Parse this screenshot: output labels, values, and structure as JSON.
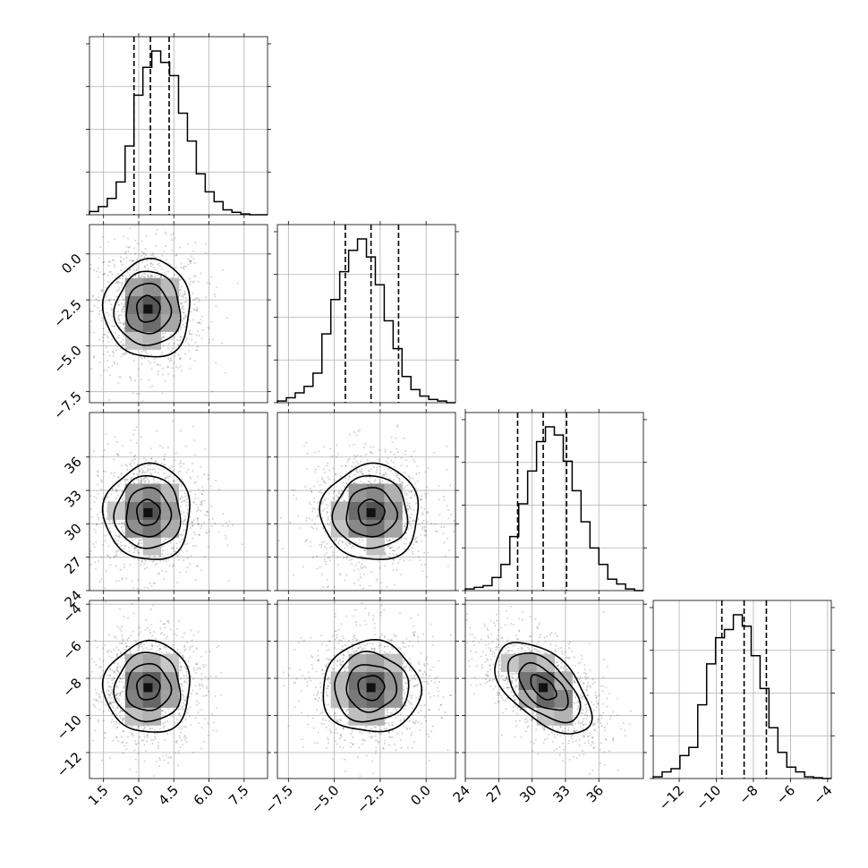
{
  "chart_data": {
    "type": "corner",
    "grid": true,
    "params": [
      {
        "name": "",
        "range": [
          0.9,
          8.5
        ],
        "ticks": [
          "1.5",
          "3.0",
          "4.5",
          "6.0",
          "7.5"
        ],
        "tick_values": [
          1.5,
          3.0,
          4.5,
          6.0,
          7.5
        ],
        "quantiles": [
          2.8,
          3.5,
          4.3
        ],
        "hist": [
          0.02,
          0.05,
          0.1,
          0.2,
          0.42,
          0.73,
          0.9,
          1.0,
          0.93,
          0.85,
          0.62,
          0.45,
          0.25,
          0.14,
          0.08,
          0.03,
          0.015,
          0.005,
          0.0,
          0.0
        ]
      },
      {
        "name": "",
        "range": [
          -8.1,
          1.6
        ],
        "ticks": [
          "-7.5",
          "-5.0",
          "-2.5",
          "0.0"
        ],
        "tick_values": [
          -7.5,
          -5.0,
          -2.5,
          0.0
        ],
        "quantiles": [
          -4.4,
          -3.0,
          -1.5
        ],
        "hist": [
          0.01,
          0.03,
          0.06,
          0.1,
          0.18,
          0.42,
          0.63,
          0.8,
          0.93,
          1.0,
          0.89,
          0.72,
          0.5,
          0.33,
          0.16,
          0.08,
          0.04,
          0.02,
          0.01,
          0.0
        ]
      },
      {
        "name": "",
        "range": [
          24.0,
          40.0
        ],
        "ticks": [
          "24",
          "27",
          "30",
          "33",
          "36"
        ],
        "tick_values": [
          24,
          27,
          30,
          33,
          36
        ],
        "quantiles": [
          28.7,
          31.0,
          33.1
        ],
        "hist": [
          0.01,
          0.02,
          0.03,
          0.08,
          0.16,
          0.33,
          0.53,
          0.73,
          0.91,
          1.0,
          0.95,
          0.79,
          0.61,
          0.42,
          0.26,
          0.16,
          0.07,
          0.04,
          0.01,
          0.0
        ]
      },
      {
        "name": "",
        "range": [
          -13.4,
          -3.8
        ],
        "ticks": [
          "-12",
          "-10",
          "-8",
          "-6",
          "-4"
        ],
        "tick_values": [
          -12,
          -10,
          -8,
          -6,
          -4
        ],
        "quantiles": [
          -9.7,
          -8.5,
          -7.3
        ],
        "hist": [
          0.01,
          0.04,
          0.06,
          0.14,
          0.19,
          0.45,
          0.7,
          0.86,
          0.91,
          1.0,
          0.93,
          0.75,
          0.55,
          0.31,
          0.16,
          0.07,
          0.04,
          0.01,
          0.005,
          0.0
        ]
      }
    ],
    "panels_2d": [
      {
        "row": 1,
        "col": 0,
        "center": [
          3.4,
          -3.0
        ],
        "sigma": [
          0.9,
          1.3
        ],
        "rho": 0.0
      },
      {
        "row": 2,
        "col": 0,
        "center": [
          3.4,
          31.0
        ],
        "sigma": [
          0.9,
          2.1
        ],
        "rho": 0.0
      },
      {
        "row": 2,
        "col": 1,
        "center": [
          -3.0,
          31.0
        ],
        "sigma": [
          1.3,
          2.1
        ],
        "rho": 0.0
      },
      {
        "row": 3,
        "col": 0,
        "center": [
          3.4,
          -8.5
        ],
        "sigma": [
          0.9,
          1.2
        ],
        "rho": 0.0
      },
      {
        "row": 3,
        "col": 1,
        "center": [
          -3.0,
          -8.5
        ],
        "sigma": [
          1.3,
          1.2
        ],
        "rho": 0.0
      },
      {
        "row": 3,
        "col": 2,
        "center": [
          31.0,
          -8.5
        ],
        "sigma": [
          2.1,
          1.2
        ],
        "rho": -0.55
      }
    ]
  }
}
